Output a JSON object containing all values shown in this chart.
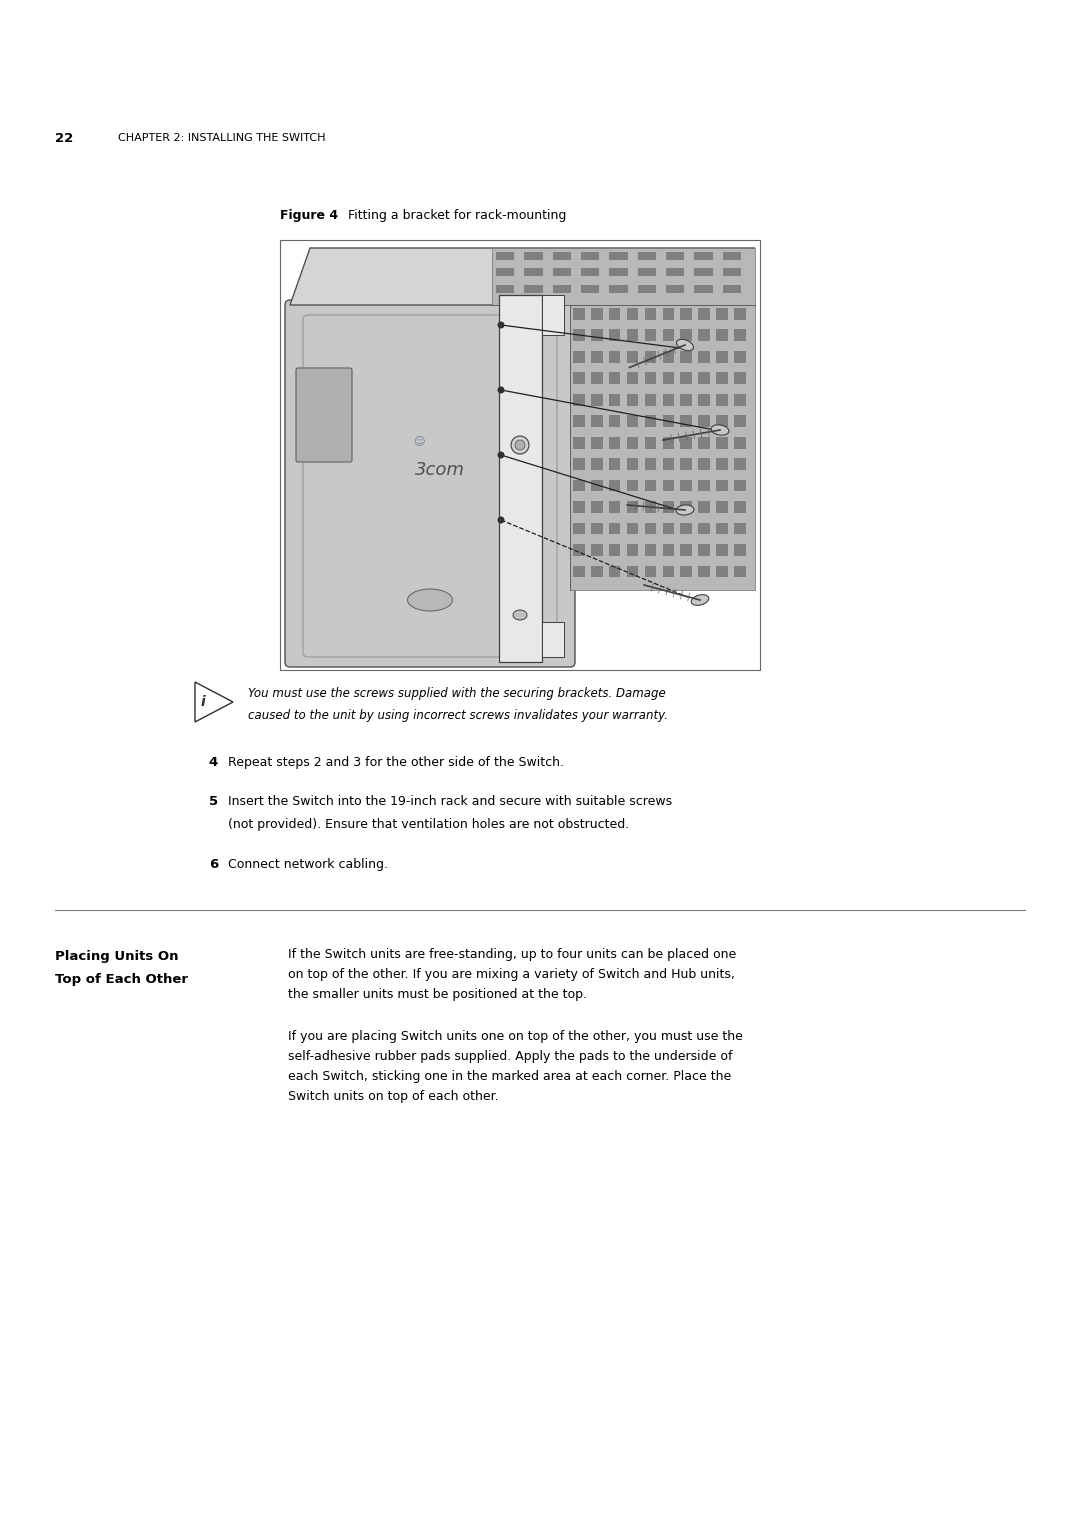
{
  "page_width": 10.8,
  "page_height": 15.28,
  "bg_color": "#ffffff",
  "text_color": "#000000",
  "header_num": "22",
  "header_chapter": "CHAPTER 2: INSTALLING THE SWITCH",
  "figure_label": "Figure 4",
  "figure_caption": "Fitting a bracket for rack-mounting",
  "note_line1": "You must use the screws supplied with the securing brackets. Damage",
  "note_line2": "caused to the unit by using incorrect screws invalidates your warranty.",
  "step4_text": "Repeat steps 2 and 3 for the other side of the Switch.",
  "step5_line1": "Insert the Switch into the 19-inch rack and secure with suitable screws",
  "step5_line2": "(not provided). Ensure that ventilation holes are not obstructed.",
  "step6_text": "Connect network cabling.",
  "section_title1": "Placing Units On",
  "section_title2": "Top of Each Other",
  "para1_l1": "If the Switch units are free-standing, up to four units can be placed one",
  "para1_l2": "on top of the other. If you are mixing a variety of Switch and Hub units,",
  "para1_l3": "the smaller units must be positioned at the top.",
  "para2_l1": "If you are placing Switch units one on top of the other, you must use the",
  "para2_l2": "self-adhesive rubber pads supplied. Apply the pads to the underside of",
  "para2_l3": "each Switch, sticking one in the marked area at each corner. Place the",
  "para2_l4": "Switch units on top of each other.",
  "gray_body": "#c0c0c0",
  "gray_dark": "#909090",
  "gray_light": "#d8d8d8",
  "gray_vent": "#b0b0b0",
  "gray_hole": "#888888",
  "white": "#ffffff"
}
